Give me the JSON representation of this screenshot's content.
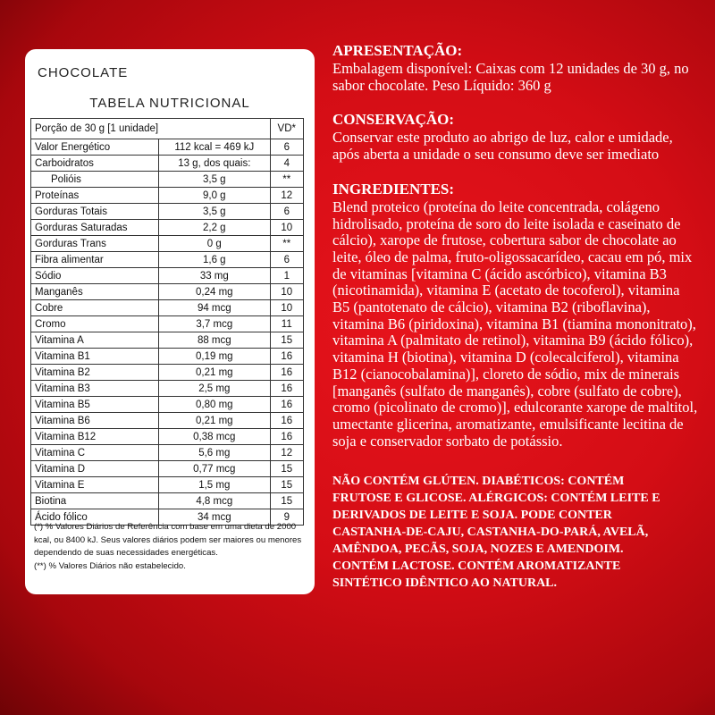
{
  "card": {
    "title": "CHOCOLATE",
    "table_title": "TABELA NUTRICIONAL",
    "header": [
      "Porção de 30 g  [1 unidade]",
      "VD*"
    ],
    "rows": [
      [
        "Valor Energético",
        "112 kcal = 469 kJ",
        "6"
      ],
      [
        "Carboidratos",
        "13 g, dos quais:",
        "4"
      ],
      [
        "Polióis",
        "3,5 g",
        "**"
      ],
      [
        "Proteínas",
        "9,0 g",
        "12"
      ],
      [
        "Gorduras Totais",
        "3,5 g",
        "6"
      ],
      [
        "Gorduras Saturadas",
        "2,2 g",
        "10"
      ],
      [
        "Gorduras Trans",
        "0 g",
        "**"
      ],
      [
        "Fibra alimentar",
        "1,6 g",
        "6"
      ],
      [
        "Sódio",
        "33 mg",
        "1"
      ],
      [
        "Manganês",
        "0,24 mg",
        "10"
      ],
      [
        "Cobre",
        "94 mcg",
        "10"
      ],
      [
        "Cromo",
        "3,7 mcg",
        "11"
      ],
      [
        "Vitamina A",
        "88 mcg",
        "15"
      ],
      [
        "Vitamina B1",
        "0,19 mg",
        "16"
      ],
      [
        "Vitamina B2",
        "0,21 mg",
        "16"
      ],
      [
        "Vitamina B3",
        "2,5 mg",
        "16"
      ],
      [
        "Vitamina B5",
        "0,80 mg",
        "16"
      ],
      [
        "Vitamina B6",
        "0,21 mg",
        "16"
      ],
      [
        "Vitamina B12",
        "0,38 mcg",
        "16"
      ],
      [
        "Vitamina C",
        "5,6 mg",
        "12"
      ],
      [
        "Vitamina D",
        "0,77 mcg",
        "15"
      ],
      [
        "Vitamina E",
        "1,5 mg",
        "15"
      ],
      [
        "Biotina",
        "4,8 mcg",
        "15"
      ],
      [
        "Ácido fólico",
        "34 mcg",
        "9"
      ]
    ],
    "footnotes": [
      "(*) % Valores Diários de Referência com base em uma dieta de 2000 kcal, ou 8400 kJ. Seus valores diários podem ser maiores ou menores dependendo de suas necessidades energéticas.",
      "(**) % Valores Diários não estabelecido."
    ]
  },
  "sections": [
    {
      "heading": "APRESENTAÇÃO:",
      "text": "Embalagem disponível: Caixas com 12 unidades de 30 g, no sabor chocolate. Peso Líquido: 360 g"
    },
    {
      "heading": "CONSERVAÇÃO:",
      "text": "Conservar este produto ao abrigo de luz, calor e umidade, após aberta a unidade o seu consumo deve ser imediato"
    },
    {
      "heading": "INGREDIENTES:",
      "text": "Blend proteico (proteína do leite concentrada, colágeno hidrolisado, proteína de soro do leite isolada e caseinato de cálcio), xarope de frutose, cobertura sabor de chocolate ao leite, óleo de palma, fruto-oligossacarídeo, cacau em pó, mix de vitaminas [vitamina C (ácido ascórbico), vitamina B3 (nicotinamida), vitamina E (acetato de tocoferol), vitamina B5 (pantotenato de cálcio), vitamina B2 (riboflavina), vitamina B6 (piridoxina), vitamina B1 (tiamina mononitrato), vitamina A (palmitato de retinol), vitamina B9 (ácido fólico), vitamina H (biotina), vitamina D (colecalciferol), vitamina B12 (cianocobalamina)], cloreto de sódio, mix de minerais [manganês (sulfato de manganês), cobre (sulfato de cobre), cromo (picolinato de cromo)], edulcorante xarope de maltitol, umectante glicerina, aromatizante, emulsificante lecitina de soja e conservador sorbato de potássio."
    }
  ],
  "warning": "NÃO CONTÉM GLÚTEN. DIABÉTICOS: CONTÉM FRUTOSE E GLICOSE. ALÉRGICOS: CONTÉM LEITE E DERIVADOS DE LEITE E SOJA. PODE CONTER CASTANHA-DE-CAJU, CASTANHA-DO-PARÁ, AVELÃ, AMÊNDOA, PECÃS, SOJA, NOZES E AMENDOIM. CONTÉM LACTOSE. CONTÉM AROMATIZANTE SINTÉTICO IDÊNTICO AO NATURAL."
}
